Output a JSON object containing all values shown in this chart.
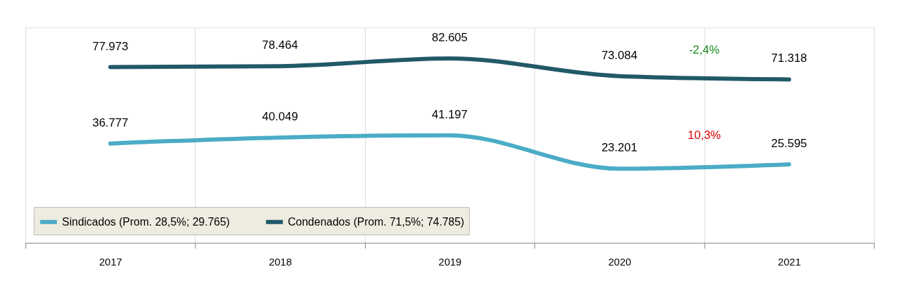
{
  "chart_data": {
    "type": "line",
    "categories": [
      "2017",
      "2018",
      "2019",
      "2020",
      "2021"
    ],
    "series": [
      {
        "name": "Sindicados (Prom. 28,5%; 29.765)",
        "color": "#4bacc6",
        "values": [
          36777,
          40049,
          41197,
          23201,
          25595
        ],
        "value_labels": [
          "36.777",
          "40.049",
          "41.197",
          "23.201",
          "25.595"
        ]
      },
      {
        "name": "Condenados (Prom. 71,5%; 74.785)",
        "color": "#215968",
        "values": [
          77973,
          78464,
          82605,
          73084,
          71318
        ],
        "value_labels": [
          "77.973",
          "78.464",
          "82.605",
          "73.084",
          "71.318"
        ]
      }
    ],
    "annotations": [
      "10,3%",
      "-2,4%"
    ],
    "grid": "x",
    "legend": "bottom left",
    "marker": "none",
    "line_style": "solid"
  }
}
